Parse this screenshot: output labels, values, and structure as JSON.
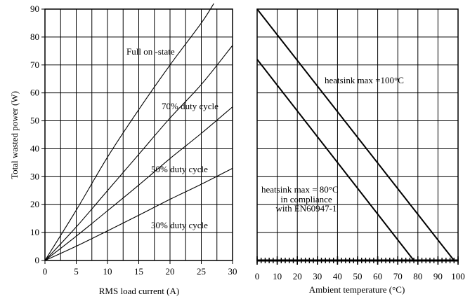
{
  "chart_data": [
    {
      "type": "line",
      "title": "",
      "xlabel": "RMS load current (A)",
      "ylabel": "Total wasted power (W)",
      "xlim": [
        0,
        30
      ],
      "ylim": [
        0,
        90
      ],
      "xticks": [
        "0",
        "5",
        "10",
        "15",
        "20",
        "25",
        "30"
      ],
      "yticks": [
        "0",
        "10",
        "20",
        "30",
        "40",
        "50",
        "60",
        "70",
        "80",
        "90"
      ],
      "grid": true,
      "series": [
        {
          "name": "Full on -state",
          "x": [
            0,
            5,
            10,
            15,
            20,
            25,
            27
          ],
          "y": [
            0,
            18,
            37,
            54,
            70,
            85,
            92
          ]
        },
        {
          "name": "70% duty cycle",
          "x": [
            0,
            5,
            10,
            15,
            20,
            25,
            30
          ],
          "y": [
            0,
            12,
            25,
            38,
            51,
            63,
            77
          ]
        },
        {
          "name": "50% duty cycle",
          "x": [
            0,
            5,
            10,
            15,
            20,
            25,
            30
          ],
          "y": [
            0,
            8.7,
            17.8,
            27,
            36.5,
            45.5,
            55
          ]
        },
        {
          "name": "30% duty cycle",
          "x": [
            0,
            5,
            10,
            15,
            20,
            25,
            30
          ],
          "y": [
            0,
            5.1,
            10.6,
            16.2,
            21.9,
            27.3,
            33
          ]
        }
      ]
    },
    {
      "type": "line",
      "title": "",
      "xlabel": "Ambient temperature (°C)",
      "ylabel": "",
      "xlim": [
        0,
        100
      ],
      "ylim": [
        0,
        90
      ],
      "xticks": [
        "0",
        "10",
        "20",
        "30",
        "40",
        "50",
        "60",
        "70",
        "80",
        "90",
        "100"
      ],
      "grid": true,
      "series": [
        {
          "name": "heatsink max =100°C",
          "x": [
            0,
            98
          ],
          "y": [
            90,
            0
          ]
        },
        {
          "name": "heatsink max = 80°C\nin compliance\nwith EN60947-1",
          "x": [
            0,
            78
          ],
          "y": [
            72,
            0
          ]
        }
      ],
      "annotations": [
        "heatsink max =100°C",
        "heatsink max = 80°C",
        "in compliance",
        "with EN60947-1"
      ]
    }
  ]
}
